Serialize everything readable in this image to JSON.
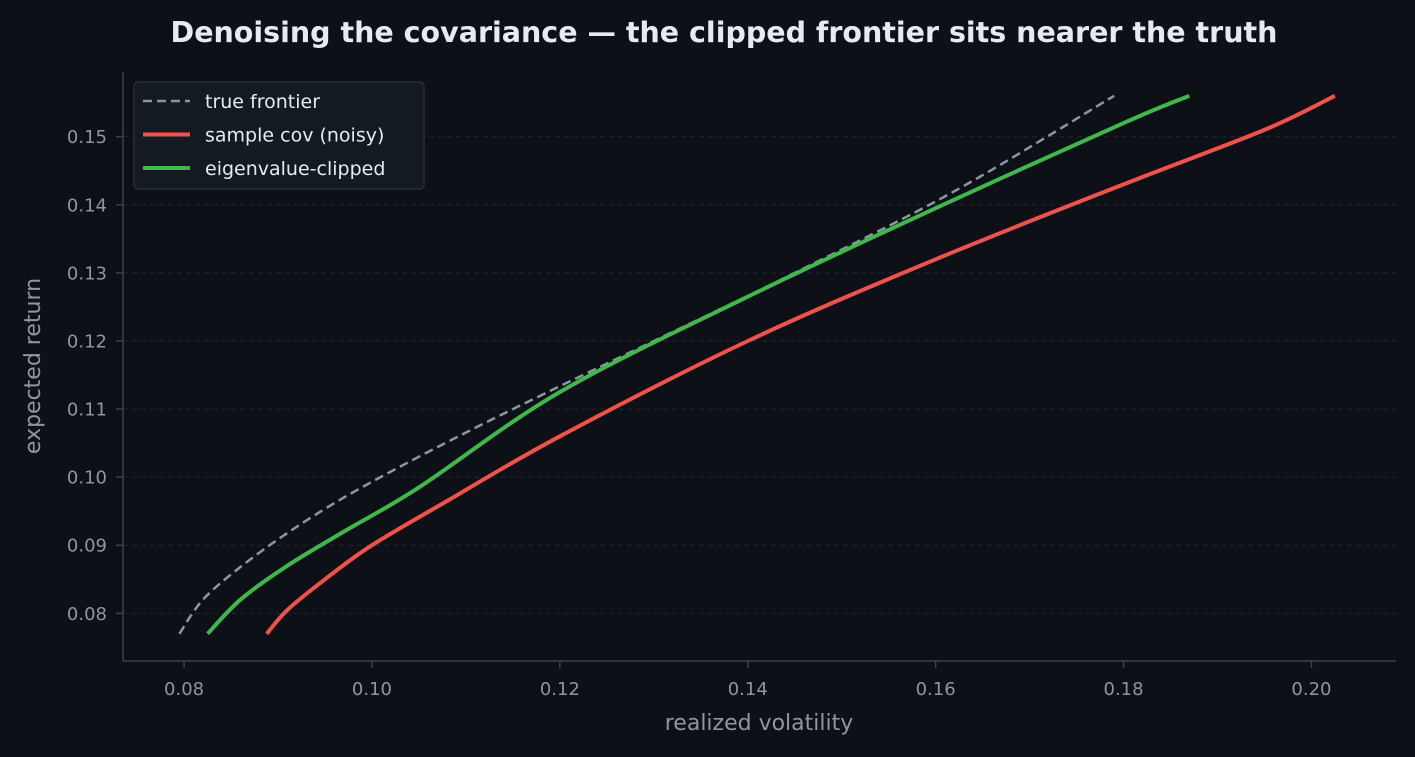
{
  "chart_data": {
    "type": "line",
    "title": "Denoising the covariance — the clipped frontier sits nearer the truth",
    "xlabel": "realized volatility",
    "ylabel": "expected return",
    "xlim": [
      0.0735,
      0.209
    ],
    "ylim": [
      0.073,
      0.1595
    ],
    "xticks": [
      0.08,
      0.1,
      0.12,
      0.14,
      0.16,
      0.18,
      0.2
    ],
    "xtick_labels": [
      "0.08",
      "0.10",
      "0.12",
      "0.14",
      "0.16",
      "0.18",
      "0.20"
    ],
    "yticks": [
      0.08,
      0.09,
      0.1,
      0.11,
      0.12,
      0.13,
      0.14,
      0.15
    ],
    "ytick_labels": [
      "0.08",
      "0.09",
      "0.10",
      "0.11",
      "0.12",
      "0.13",
      "0.14",
      "0.15"
    ],
    "grid": "horizontal-dashed",
    "legend_position": "top-left",
    "series": [
      {
        "name": "true frontier",
        "color": "#8b96a3",
        "style": "dashed",
        "points": [
          [
            0.0795,
            0.077
          ],
          [
            0.082,
            0.082
          ],
          [
            0.086,
            0.0868
          ],
          [
            0.091,
            0.0918
          ],
          [
            0.097,
            0.097
          ],
          [
            0.105,
            0.103
          ],
          [
            0.115,
            0.11
          ],
          [
            0.13,
            0.12
          ],
          [
            0.145,
            0.13
          ],
          [
            0.162,
            0.142
          ],
          [
            0.179,
            0.156
          ]
        ]
      },
      {
        "name": "sample cov (noisy)",
        "color": "#f0524a",
        "style": "solid",
        "points": [
          [
            0.0888,
            0.077
          ],
          [
            0.091,
            0.0805
          ],
          [
            0.095,
            0.085
          ],
          [
            0.1,
            0.09
          ],
          [
            0.108,
            0.0965
          ],
          [
            0.12,
            0.106
          ],
          [
            0.14,
            0.12
          ],
          [
            0.16,
            0.132
          ],
          [
            0.18,
            0.143
          ],
          [
            0.195,
            0.151
          ],
          [
            0.2025,
            0.156
          ]
        ]
      },
      {
        "name": "eigenvalue-clipped",
        "color": "#3fb74a",
        "style": "solid",
        "points": [
          [
            0.0825,
            0.077
          ],
          [
            0.086,
            0.082
          ],
          [
            0.091,
            0.087
          ],
          [
            0.097,
            0.092
          ],
          [
            0.105,
            0.0985
          ],
          [
            0.12,
            0.1125
          ],
          [
            0.14,
            0.1265
          ],
          [
            0.16,
            0.1395
          ],
          [
            0.18,
            0.152
          ],
          [
            0.187,
            0.156
          ]
        ]
      }
    ]
  }
}
